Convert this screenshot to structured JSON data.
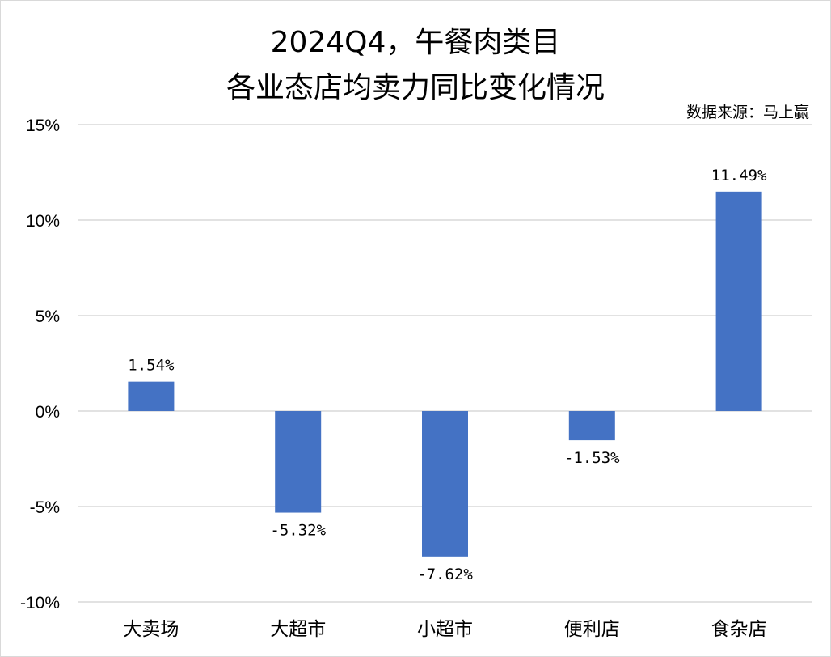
{
  "chart_data": {
    "type": "bar",
    "title_line1": "2024Q4，午餐肉类目",
    "title_line2": "各业态店均卖力同比变化情况",
    "source": "数据来源：马上赢",
    "categories": [
      "大卖场",
      "大超市",
      "小超市",
      "便利店",
      "食杂店"
    ],
    "values": [
      1.54,
      -5.32,
      -7.62,
      -1.53,
      11.49
    ],
    "data_labels": [
      "1.54%",
      "-5.32%",
      "-7.62%",
      "-1.53%",
      "11.49%"
    ],
    "yticks": [
      15,
      10,
      5,
      0,
      -5,
      -10
    ],
    "ytick_labels": [
      "15%",
      "10%",
      "5%",
      "0%",
      "-5%",
      "-10%"
    ],
    "ylim": [
      -10,
      15
    ],
    "xlabel": "",
    "ylabel": "",
    "grid": true,
    "legend": "none",
    "bar_color": "#4472C4",
    "grid_color": "#d9d9d9"
  }
}
